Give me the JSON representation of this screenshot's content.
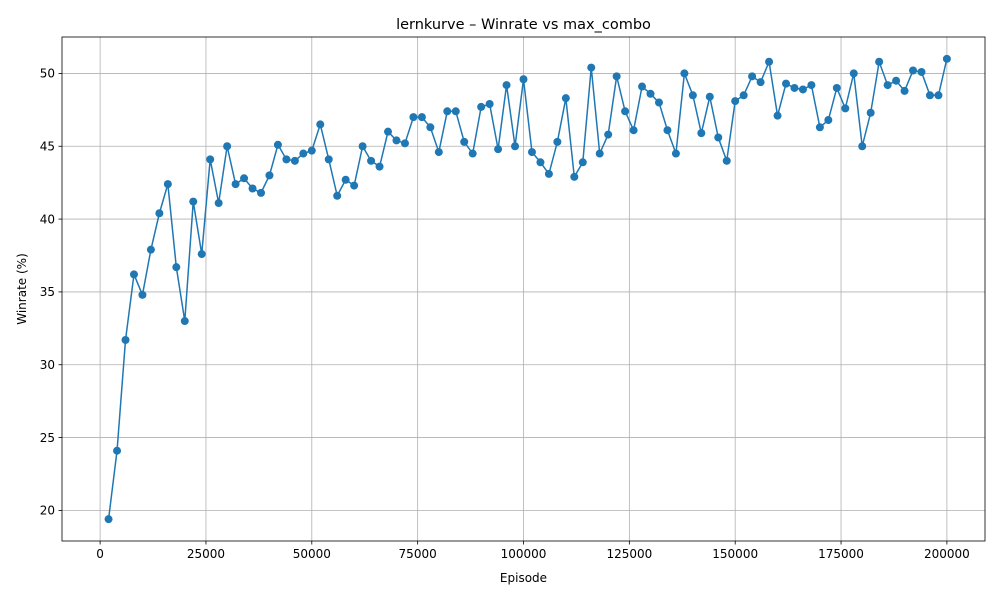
{
  "chart_data": {
    "type": "line",
    "title": "lernkurve – Winrate vs max_combo",
    "xlabel": "Episode",
    "ylabel": "Winrate (%)",
    "xlim": [
      -9000,
      209000
    ],
    "ylim": [
      17.9,
      52.5
    ],
    "grid": true,
    "marker": "circle",
    "colors": {
      "series": "#1f77b4",
      "grid": "#b0b0b0",
      "axis": "#000000"
    },
    "x_ticks": [
      {
        "value": 0,
        "label": "0"
      },
      {
        "value": 25000,
        "label": "25000"
      },
      {
        "value": 50000,
        "label": "50000"
      },
      {
        "value": 75000,
        "label": "75000"
      },
      {
        "value": 100000,
        "label": "100000"
      },
      {
        "value": 125000,
        "label": "125000"
      },
      {
        "value": 150000,
        "label": "150000"
      },
      {
        "value": 175000,
        "label": "175000"
      },
      {
        "value": 200000,
        "label": "200000"
      }
    ],
    "y_ticks": [
      {
        "value": 20,
        "label": "20"
      },
      {
        "value": 25,
        "label": "25"
      },
      {
        "value": 30,
        "label": "30"
      },
      {
        "value": 35,
        "label": "35"
      },
      {
        "value": 40,
        "label": "40"
      },
      {
        "value": 45,
        "label": "45"
      },
      {
        "value": 50,
        "label": "50"
      }
    ],
    "series": [
      {
        "x": [
          2000,
          4000,
          6000,
          8000,
          10000,
          12000,
          14000,
          16000,
          18000,
          20000,
          22000,
          24000,
          26000,
          28000,
          30000,
          32000,
          34000,
          36000,
          38000,
          40000,
          42000,
          44000,
          46000,
          48000,
          50000,
          52000,
          54000,
          56000,
          58000,
          60000,
          62000,
          64000,
          66000,
          68000,
          70000,
          72000,
          74000,
          76000,
          78000,
          80000,
          82000,
          84000,
          86000,
          88000,
          90000,
          92000,
          94000,
          96000,
          98000,
          100000,
          102000,
          104000,
          106000,
          108000,
          110000,
          112000,
          114000,
          116000,
          118000,
          120000,
          122000,
          124000,
          126000,
          128000,
          130000,
          132000,
          134000,
          136000,
          138000,
          140000,
          142000,
          144000,
          146000,
          148000,
          150000,
          152000,
          154000,
          156000,
          158000,
          160000,
          162000,
          164000,
          166000,
          168000,
          170000,
          172000,
          174000,
          176000,
          178000,
          180000,
          182000,
          184000,
          186000,
          188000,
          190000,
          192000,
          194000,
          196000,
          198000,
          200000
        ],
        "y": [
          19.4,
          24.1,
          31.7,
          36.2,
          34.8,
          37.9,
          40.4,
          42.4,
          36.7,
          33.0,
          41.2,
          37.6,
          44.1,
          41.1,
          45.0,
          42.4,
          42.8,
          42.1,
          41.8,
          43.0,
          45.1,
          44.1,
          44.0,
          44.5,
          44.7,
          46.5,
          44.1,
          41.6,
          42.7,
          42.3,
          45.0,
          44.0,
          43.6,
          46.0,
          45.4,
          45.2,
          47.0,
          47.0,
          46.3,
          44.6,
          47.4,
          47.4,
          45.3,
          44.5,
          47.7,
          47.9,
          44.8,
          49.2,
          45.0,
          49.6,
          44.6,
          43.9,
          43.1,
          45.3,
          48.3,
          42.9,
          43.9,
          50.4,
          44.5,
          45.8,
          49.8,
          47.4,
          46.1,
          49.1,
          48.6,
          48.0,
          46.1,
          44.5,
          50.0,
          48.5,
          45.9,
          48.4,
          45.6,
          44.0,
          48.1,
          48.5,
          49.8,
          49.4,
          50.8,
          47.1,
          49.3,
          49.0,
          48.9,
          49.2,
          46.3,
          46.8,
          49.0,
          47.6,
          50.0,
          45.0,
          47.3,
          50.8,
          49.2,
          49.5,
          48.8,
          50.2,
          50.1,
          48.5,
          48.5,
          51.0
        ]
      }
    ]
  }
}
